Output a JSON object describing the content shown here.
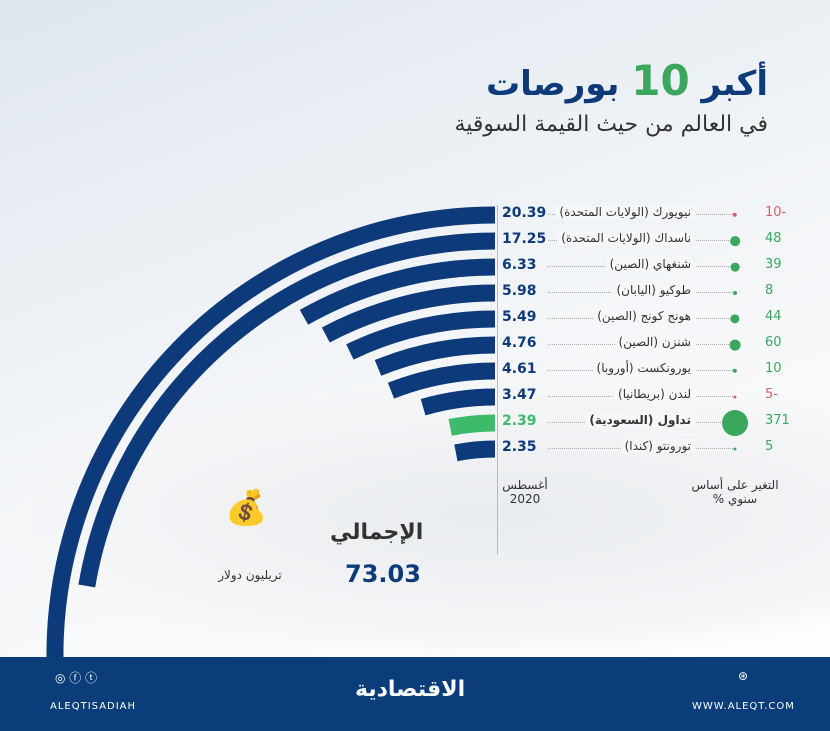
{
  "title": {
    "prefix": "أكبر",
    "number": "10",
    "suffix": "بورصات",
    "subtitle": "في العالم من حيث القيمة السوقية"
  },
  "colors": {
    "bar": "#0d3a7a",
    "highlight": "#3dbb6a",
    "positive": "#3aa85c",
    "negative": "#e05a6a"
  },
  "chart_data": {
    "type": "bar",
    "layout": "radial",
    "categories": [
      "نيويورك (الولايات المتحدة)",
      "ناسداك (الولايات المتحدة)",
      "شنغهاي (الصين)",
      "طوكيو (اليابان)",
      "هونج كونج (الصين)",
      "شنزن (الصين)",
      "يورونكست (أوروبا)",
      "لندن (بريطانيا)",
      "تداول (السعودية)",
      "تورونتو (كندا)"
    ],
    "series": [
      {
        "name": "أغسطس 2020",
        "values": [
          20.39,
          17.25,
          6.33,
          5.98,
          5.49,
          4.76,
          4.61,
          3.47,
          2.39,
          2.35
        ]
      },
      {
        "name": "التغير على أساس سنوي %",
        "values": [
          -10,
          48,
          39,
          8,
          44,
          60,
          10,
          -5,
          371,
          5
        ]
      }
    ],
    "value_labels": [
      "20.39",
      "17.25",
      "6.33",
      "5.98",
      "5.49",
      "4.76",
      "4.61",
      "3.47",
      "2.39",
      "2.35"
    ],
    "change_labels": [
      "10-",
      "48",
      "39",
      "8",
      "44",
      "60",
      "10",
      "5-",
      "371",
      "5"
    ],
    "highlight_index": 8
  },
  "labels": {
    "period": "أغسطس 2020",
    "change": "التغير على أساس سنوي %",
    "total_label": "الإجمالي",
    "total": "73.03",
    "unit": "تريليون دولار"
  },
  "footer": {
    "social": "ALEQTISADIAH",
    "logo": "الاقتصادية",
    "website": "WWW.ALEQT.COM"
  }
}
